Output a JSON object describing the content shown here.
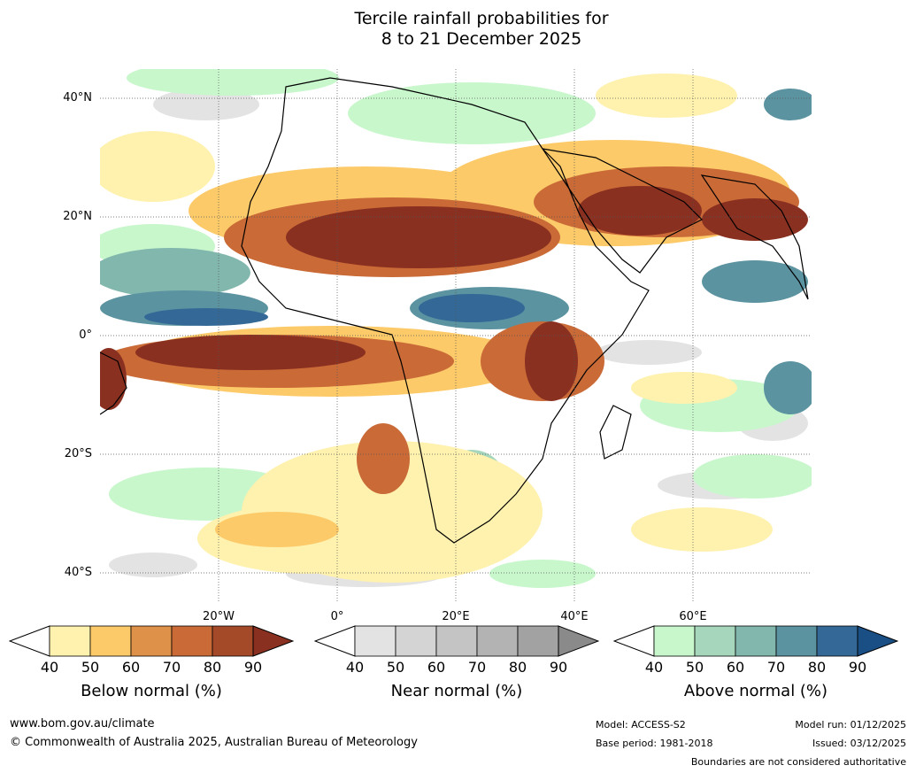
{
  "title": {
    "line1": "Tercile rainfall probabilities for",
    "line2": "8 to 21 December 2025"
  },
  "map": {
    "lat_labels": [
      "40°N",
      "20°N",
      "0°",
      "20°S",
      "40°S"
    ],
    "lon_labels": [
      "20°W",
      "0°",
      "20°E",
      "40°E",
      "60°E"
    ]
  },
  "colorbars": [
    {
      "caption": "Below normal (%)",
      "ticks": [
        "40",
        "50",
        "60",
        "70",
        "80",
        "90"
      ],
      "colors": [
        "#fff1ae",
        "#fdca6a",
        "#de9148",
        "#c96a37",
        "#a54a29",
        "#8a3020"
      ]
    },
    {
      "caption": "Near normal (%)",
      "ticks": [
        "40",
        "50",
        "60",
        "70",
        "80",
        "90"
      ],
      "colors": [
        "#e3e3e3",
        "#d4d4d4",
        "#c4c4c4",
        "#b3b3b3",
        "#a2a2a2",
        "#8a8a8a"
      ]
    },
    {
      "caption": "Above normal (%)",
      "ticks": [
        "40",
        "50",
        "60",
        "70",
        "80",
        "90"
      ],
      "colors": [
        "#c8f7cc",
        "#a6d7bc",
        "#82b7ae",
        "#5c93a0",
        "#336897",
        "#1a4f85"
      ]
    }
  ],
  "footer": {
    "website": "www.bom.gov.au/climate",
    "copyright": "© Commonwealth of Australia 2025, Australian Bureau of Meteorology",
    "model": "Model: ACCESS-S2",
    "base_period": "Base period: 1981-2018",
    "model_run": "Model run: 01/12/2025",
    "issued": "Issued: 03/12/2025",
    "disclaimer": "Boundaries are not considered authoritative"
  }
}
